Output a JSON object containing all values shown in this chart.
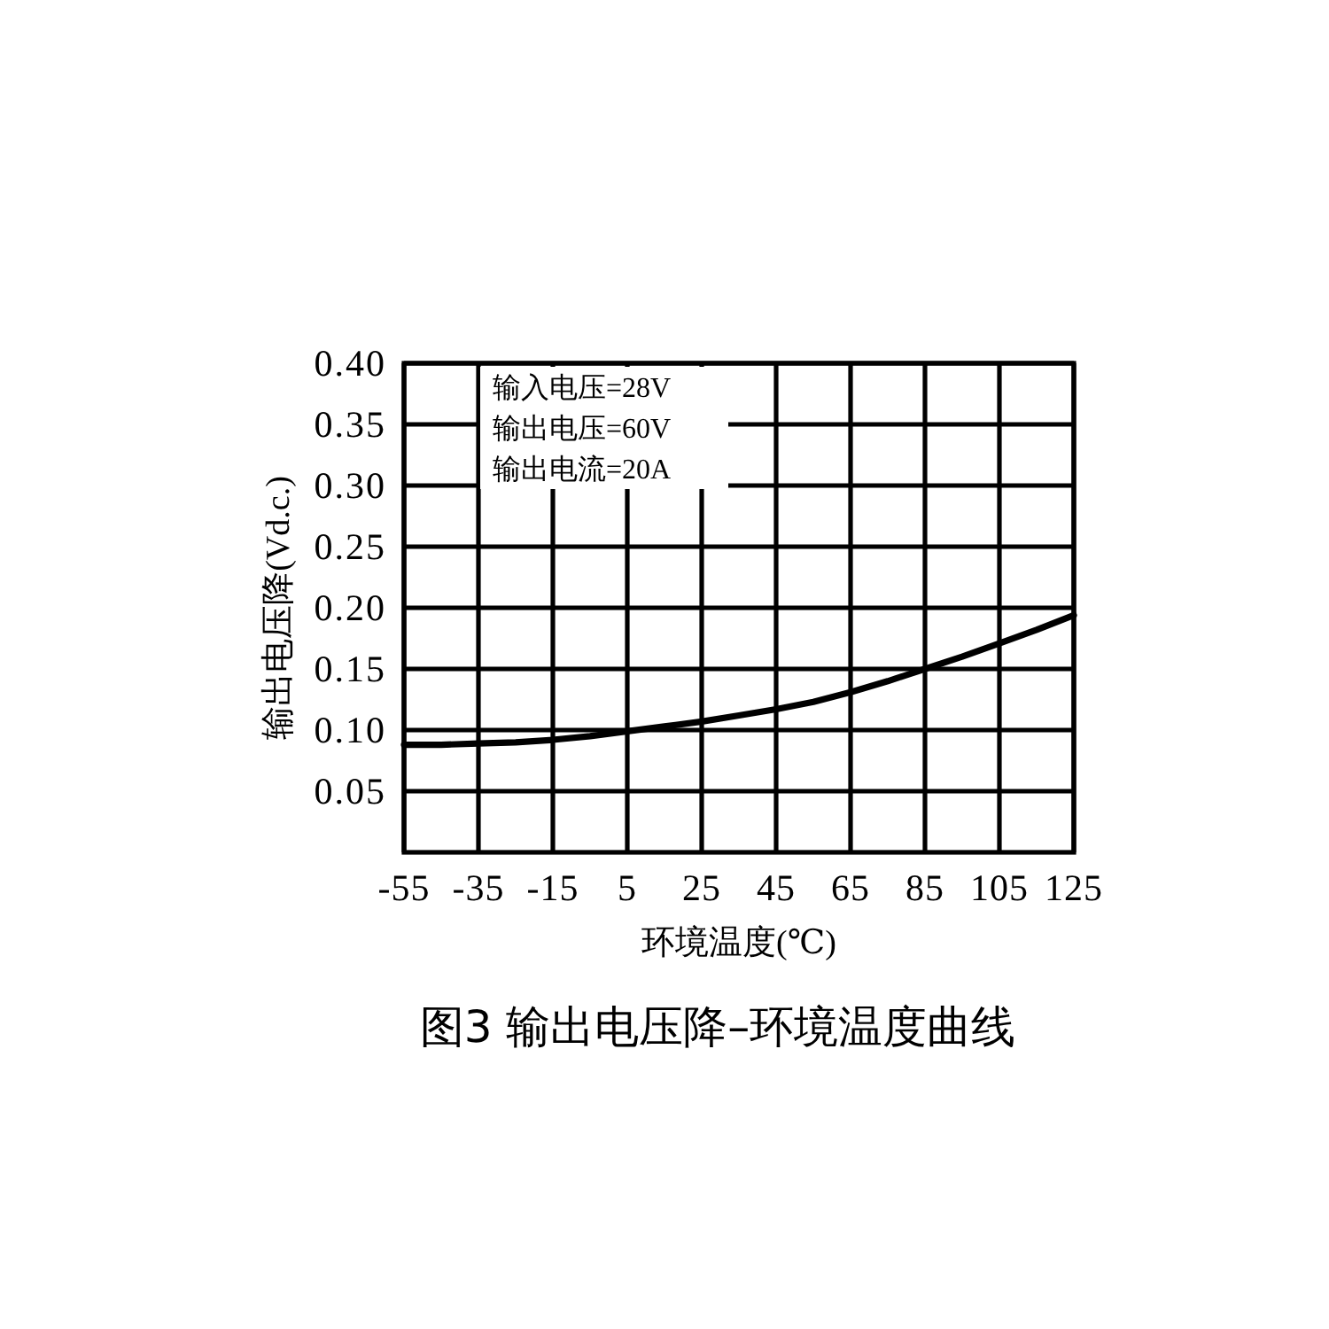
{
  "chart_data": {
    "type": "line",
    "title": "图3 输出电压降–环境温度曲线",
    "xlabel": "环境温度(℃)",
    "ylabel": "输出电压降(Vd.c.)",
    "annotations": [
      "输入电压=28V",
      "输出电压=60V",
      "输出电流=20A"
    ],
    "x": [
      -55,
      -45,
      -35,
      -25,
      -15,
      -5,
      5,
      15,
      25,
      35,
      45,
      55,
      65,
      75,
      85,
      95,
      105,
      115,
      125
    ],
    "series": [
      {
        "color": "#000000",
        "values": [
          0.088,
          0.088,
          0.089,
          0.09,
          0.092,
          0.095,
          0.099,
          0.103,
          0.107,
          0.112,
          0.117,
          0.123,
          0.131,
          0.14,
          0.15,
          0.16,
          0.171,
          0.182,
          0.194
        ]
      }
    ],
    "xlim": [
      -55,
      125
    ],
    "xticks": [
      -55,
      -35,
      -15,
      5,
      25,
      45,
      65,
      85,
      105,
      125
    ],
    "ylim": [
      0,
      0.4
    ],
    "yticks": [
      {
        "value": 0.05,
        "label": "0.05"
      },
      {
        "value": 0.1,
        "label": "0.10"
      },
      {
        "value": 0.15,
        "label": "0.15"
      },
      {
        "value": 0.2,
        "label": "0.20"
      },
      {
        "value": 0.25,
        "label": "0.25"
      },
      {
        "value": 0.3,
        "label": "0.30"
      },
      {
        "value": 0.35,
        "label": "0.35"
      },
      {
        "value": 0.4,
        "label": "0.40"
      }
    ],
    "grid": true,
    "line_style": "solid"
  }
}
